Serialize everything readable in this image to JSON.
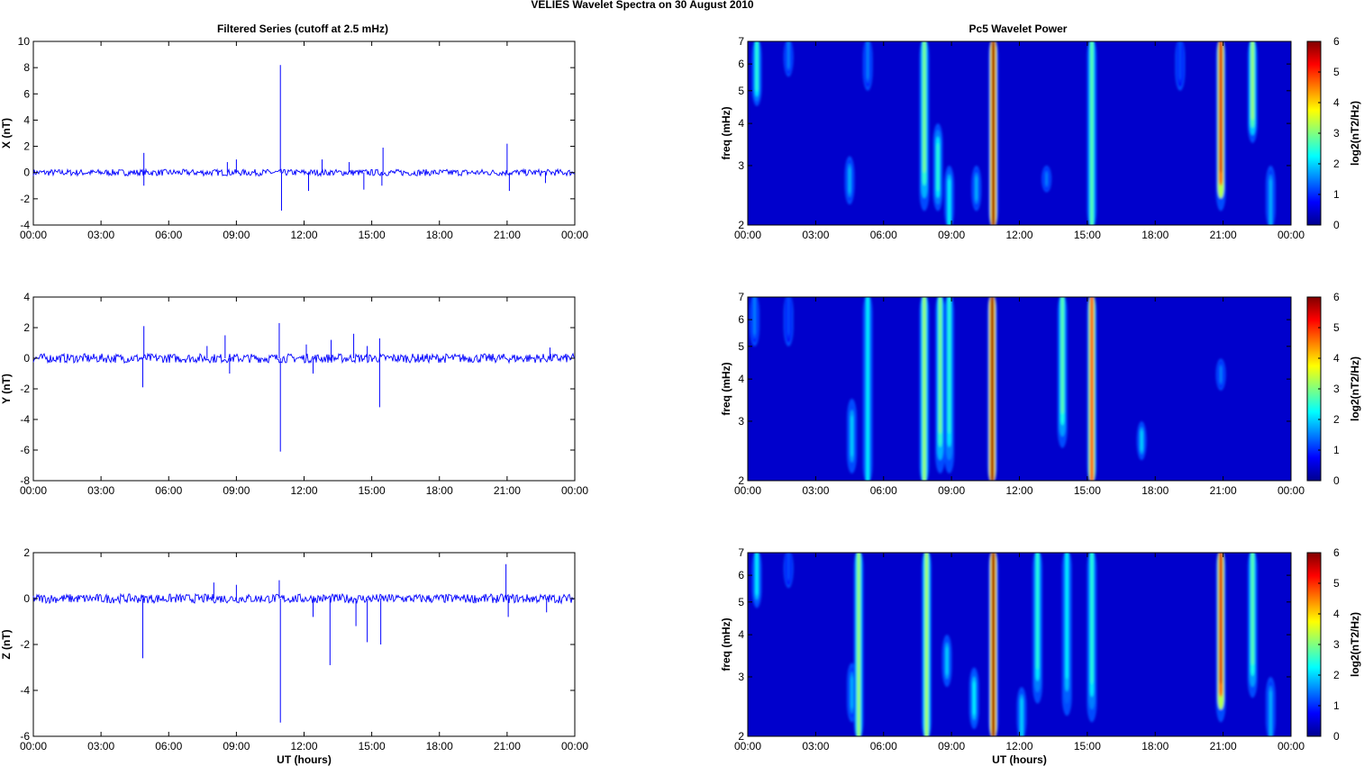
{
  "figure": {
    "suptitle": "VELIES Wavelet Spectra on 30 August    2010",
    "left_title": "Filtered Series (cutoff at 2.5 mHz)",
    "right_title": "Pc5 Wavelet Power",
    "xlabel": "UT (hours)"
  },
  "colors": {
    "trace": "#0000ff",
    "jet": [
      "#00008f",
      "#0000ff",
      "#00ffff",
      "#ffff00",
      "#ff0000",
      "#800000"
    ]
  },
  "chart_data": [
    {
      "type": "line",
      "title": "Filtered Series (cutoff at 2.5 mHz)",
      "ylabel": "X (nT)",
      "xlabel": "",
      "xlim": [
        0,
        24
      ],
      "ylim": [
        -4,
        10
      ],
      "x_ticks": [
        "00:00",
        "03:00",
        "06:00",
        "09:00",
        "12:00",
        "15:00",
        "18:00",
        "21:00",
        "00:00"
      ],
      "y_ticks": [
        "-4",
        "-2",
        "0",
        "2",
        "4",
        "6",
        "8",
        "10"
      ],
      "noise_amplitude": 0.25,
      "spikes": [
        {
          "t": 4.9,
          "v": 1.5
        },
        {
          "t": 4.9,
          "v": -1.0
        },
        {
          "t": 8.6,
          "v": 0.8
        },
        {
          "t": 9.0,
          "v": 1.0
        },
        {
          "t": 10.95,
          "v": 8.2
        },
        {
          "t": 11.0,
          "v": -2.9
        },
        {
          "t": 12.2,
          "v": -1.4
        },
        {
          "t": 12.8,
          "v": 1.0
        },
        {
          "t": 14.0,
          "v": 0.8
        },
        {
          "t": 14.65,
          "v": -1.3
        },
        {
          "t": 15.5,
          "v": 1.9
        },
        {
          "t": 15.45,
          "v": -1.0
        },
        {
          "t": 21.0,
          "v": 2.2
        },
        {
          "t": 21.1,
          "v": -1.4
        },
        {
          "t": 22.7,
          "v": -0.8
        }
      ]
    },
    {
      "type": "line",
      "title": "",
      "ylabel": "Y (nT)",
      "xlabel": "",
      "xlim": [
        0,
        24
      ],
      "ylim": [
        -8,
        4
      ],
      "x_ticks": [
        "00:00",
        "03:00",
        "06:00",
        "09:00",
        "12:00",
        "15:00",
        "18:00",
        "21:00",
        "00:00"
      ],
      "y_ticks": [
        "-8",
        "-6",
        "-4",
        "-2",
        "0",
        "2",
        "4"
      ],
      "noise_amplitude": 0.3,
      "spikes": [
        {
          "t": 4.9,
          "v": 2.1
        },
        {
          "t": 4.85,
          "v": -1.9
        },
        {
          "t": 7.7,
          "v": 0.8
        },
        {
          "t": 8.5,
          "v": 1.5
        },
        {
          "t": 8.7,
          "v": -1.0
        },
        {
          "t": 10.9,
          "v": 2.3
        },
        {
          "t": 10.95,
          "v": -6.1
        },
        {
          "t": 12.1,
          "v": 0.9
        },
        {
          "t": 12.4,
          "v": -1.0
        },
        {
          "t": 13.2,
          "v": 1.2
        },
        {
          "t": 14.2,
          "v": 1.6
        },
        {
          "t": 14.8,
          "v": 0.8
        },
        {
          "t": 15.35,
          "v": 1.3
        },
        {
          "t": 15.35,
          "v": -3.2
        },
        {
          "t": 22.9,
          "v": 0.7
        }
      ]
    },
    {
      "type": "line",
      "title": "",
      "ylabel": "Z (nT)",
      "xlabel": "UT (hours)",
      "xlim": [
        0,
        24
      ],
      "ylim": [
        -6,
        2
      ],
      "x_ticks": [
        "00:00",
        "03:00",
        "06:00",
        "09:00",
        "12:00",
        "15:00",
        "18:00",
        "21:00",
        "00:00"
      ],
      "y_ticks": [
        "-6",
        "-4",
        "-2",
        "0",
        "2"
      ],
      "noise_amplitude": 0.2,
      "spikes": [
        {
          "t": 4.85,
          "v": -2.6
        },
        {
          "t": 8.0,
          "v": 0.7
        },
        {
          "t": 9.0,
          "v": 0.6
        },
        {
          "t": 10.9,
          "v": 0.8
        },
        {
          "t": 10.95,
          "v": -5.4
        },
        {
          "t": 12.4,
          "v": -0.8
        },
        {
          "t": 13.15,
          "v": -2.9
        },
        {
          "t": 14.3,
          "v": -1.2
        },
        {
          "t": 14.8,
          "v": -1.9
        },
        {
          "t": 15.4,
          "v": -2.0
        },
        {
          "t": 20.95,
          "v": 1.5
        },
        {
          "t": 21.05,
          "v": -0.8
        },
        {
          "t": 22.75,
          "v": -0.6
        }
      ]
    },
    {
      "type": "heatmap",
      "title": "Pc5 Wavelet Power",
      "ylabel": "freq (mHz)",
      "xlabel": "",
      "xlim": [
        0,
        24
      ],
      "ylim": [
        2,
        7
      ],
      "y_scale": "log",
      "x_ticks": [
        "00:00",
        "03:00",
        "06:00",
        "09:00",
        "12:00",
        "15:00",
        "18:00",
        "21:00",
        "00:00"
      ],
      "y_ticks": [
        "2",
        "3",
        "4",
        "5",
        "6",
        "7"
      ],
      "colorbar": {
        "label": "log2(nT2/Hz)",
        "range": [
          0,
          6
        ],
        "ticks": [
          "0",
          "1",
          "2",
          "3",
          "4",
          "5",
          "6"
        ]
      },
      "features": [
        {
          "t": 0.4,
          "f_low": 4.5,
          "f_high": 7,
          "power": 2.5
        },
        {
          "t": 1.8,
          "f_low": 5.5,
          "f_high": 7,
          "power": 1.5
        },
        {
          "t": 4.5,
          "f_low": 2.3,
          "f_high": 3.2,
          "power": 1.8
        },
        {
          "t": 5.3,
          "f_low": 5.0,
          "f_high": 7,
          "power": 1.5
        },
        {
          "t": 7.8,
          "f_low": 2.2,
          "f_high": 7,
          "power": 3.0
        },
        {
          "t": 8.4,
          "f_low": 2.2,
          "f_high": 4.0,
          "power": 2.5
        },
        {
          "t": 8.9,
          "f_low": 2.0,
          "f_high": 3.0,
          "power": 2.2
        },
        {
          "t": 10.1,
          "f_low": 2.2,
          "f_high": 3.0,
          "power": 1.8
        },
        {
          "t": 10.85,
          "f_low": 2.0,
          "f_high": 7,
          "power": 6.0
        },
        {
          "t": 13.2,
          "f_low": 2.5,
          "f_high": 3.0,
          "power": 1.5
        },
        {
          "t": 15.2,
          "f_low": 2.0,
          "f_high": 7,
          "power": 2.8
        },
        {
          "t": 19.1,
          "f_low": 5.0,
          "f_high": 7,
          "power": 1.2
        },
        {
          "t": 20.9,
          "f_low": 2.2,
          "f_high": 7,
          "power": 5.5
        },
        {
          "t": 22.3,
          "f_low": 3.5,
          "f_high": 7,
          "power": 3.2
        },
        {
          "t": 23.1,
          "f_low": 2.0,
          "f_high": 3.0,
          "power": 1.8
        }
      ]
    },
    {
      "type": "heatmap",
      "title": "",
      "ylabel": "freq (mHz)",
      "xlabel": "",
      "xlim": [
        0,
        24
      ],
      "ylim": [
        2,
        7
      ],
      "y_scale": "log",
      "x_ticks": [
        "00:00",
        "03:00",
        "06:00",
        "09:00",
        "12:00",
        "15:00",
        "18:00",
        "21:00",
        "00:00"
      ],
      "y_ticks": [
        "2",
        "3",
        "4",
        "5",
        "6",
        "7"
      ],
      "colorbar": {
        "label": "log2(nT2/Hz)",
        "range": [
          0,
          6
        ],
        "ticks": [
          "0",
          "1",
          "2",
          "3",
          "4",
          "5",
          "6"
        ]
      },
      "features": [
        {
          "t": 0.3,
          "f_low": 5.0,
          "f_high": 7,
          "power": 1.5
        },
        {
          "t": 1.8,
          "f_low": 5.0,
          "f_high": 7,
          "power": 1.2
        },
        {
          "t": 4.6,
          "f_low": 2.1,
          "f_high": 3.5,
          "power": 2.0
        },
        {
          "t": 5.3,
          "f_low": 2.0,
          "f_high": 7,
          "power": 2.2
        },
        {
          "t": 7.8,
          "f_low": 2.0,
          "f_high": 7,
          "power": 3.2
        },
        {
          "t": 8.5,
          "f_low": 2.1,
          "f_high": 7,
          "power": 3.0
        },
        {
          "t": 8.9,
          "f_low": 2.1,
          "f_high": 7,
          "power": 2.5
        },
        {
          "t": 10.8,
          "f_low": 2.0,
          "f_high": 7,
          "power": 6.0
        },
        {
          "t": 13.9,
          "f_low": 2.5,
          "f_high": 7,
          "power": 2.8
        },
        {
          "t": 15.2,
          "f_low": 2.0,
          "f_high": 7,
          "power": 5.0
        },
        {
          "t": 17.4,
          "f_low": 2.3,
          "f_high": 3.0,
          "power": 2.0
        },
        {
          "t": 20.9,
          "f_low": 3.7,
          "f_high": 4.6,
          "power": 1.5
        }
      ]
    },
    {
      "type": "heatmap",
      "title": "",
      "ylabel": "freq (mHz)",
      "xlabel": "UT (hours)",
      "xlim": [
        0,
        24
      ],
      "ylim": [
        2,
        7
      ],
      "y_scale": "log",
      "x_ticks": [
        "00:00",
        "03:00",
        "06:00",
        "09:00",
        "12:00",
        "15:00",
        "18:00",
        "21:00",
        "00:00"
      ],
      "y_ticks": [
        "2",
        "3",
        "4",
        "5",
        "6",
        "7"
      ],
      "colorbar": {
        "label": "log2(nT2/Hz)",
        "range": [
          0,
          6
        ],
        "ticks": [
          "0",
          "1",
          "2",
          "3",
          "4",
          "5",
          "6"
        ]
      },
      "features": [
        {
          "t": 0.4,
          "f_low": 4.8,
          "f_high": 7,
          "power": 2.2
        },
        {
          "t": 1.8,
          "f_low": 5.5,
          "f_high": 7,
          "power": 1.2
        },
        {
          "t": 4.6,
          "f_low": 2.2,
          "f_high": 3.3,
          "power": 1.8
        },
        {
          "t": 4.9,
          "f_low": 2.0,
          "f_high": 7,
          "power": 3.2
        },
        {
          "t": 7.9,
          "f_low": 2.0,
          "f_high": 7,
          "power": 3.3
        },
        {
          "t": 8.8,
          "f_low": 2.8,
          "f_high": 4.0,
          "power": 2.0
        },
        {
          "t": 10.0,
          "f_low": 2.1,
          "f_high": 3.2,
          "power": 2.2
        },
        {
          "t": 10.85,
          "f_low": 2.0,
          "f_high": 7,
          "power": 6.0
        },
        {
          "t": 12.1,
          "f_low": 2.0,
          "f_high": 2.8,
          "power": 2.0
        },
        {
          "t": 12.8,
          "f_low": 2.5,
          "f_high": 7,
          "power": 2.5
        },
        {
          "t": 14.1,
          "f_low": 2.3,
          "f_high": 7,
          "power": 2.2
        },
        {
          "t": 15.2,
          "f_low": 2.2,
          "f_high": 7,
          "power": 2.5
        },
        {
          "t": 20.9,
          "f_low": 2.2,
          "f_high": 7,
          "power": 5.5
        },
        {
          "t": 22.3,
          "f_low": 2.6,
          "f_high": 7,
          "power": 2.8
        },
        {
          "t": 23.1,
          "f_low": 2.0,
          "f_high": 3.0,
          "power": 1.8
        }
      ]
    }
  ]
}
